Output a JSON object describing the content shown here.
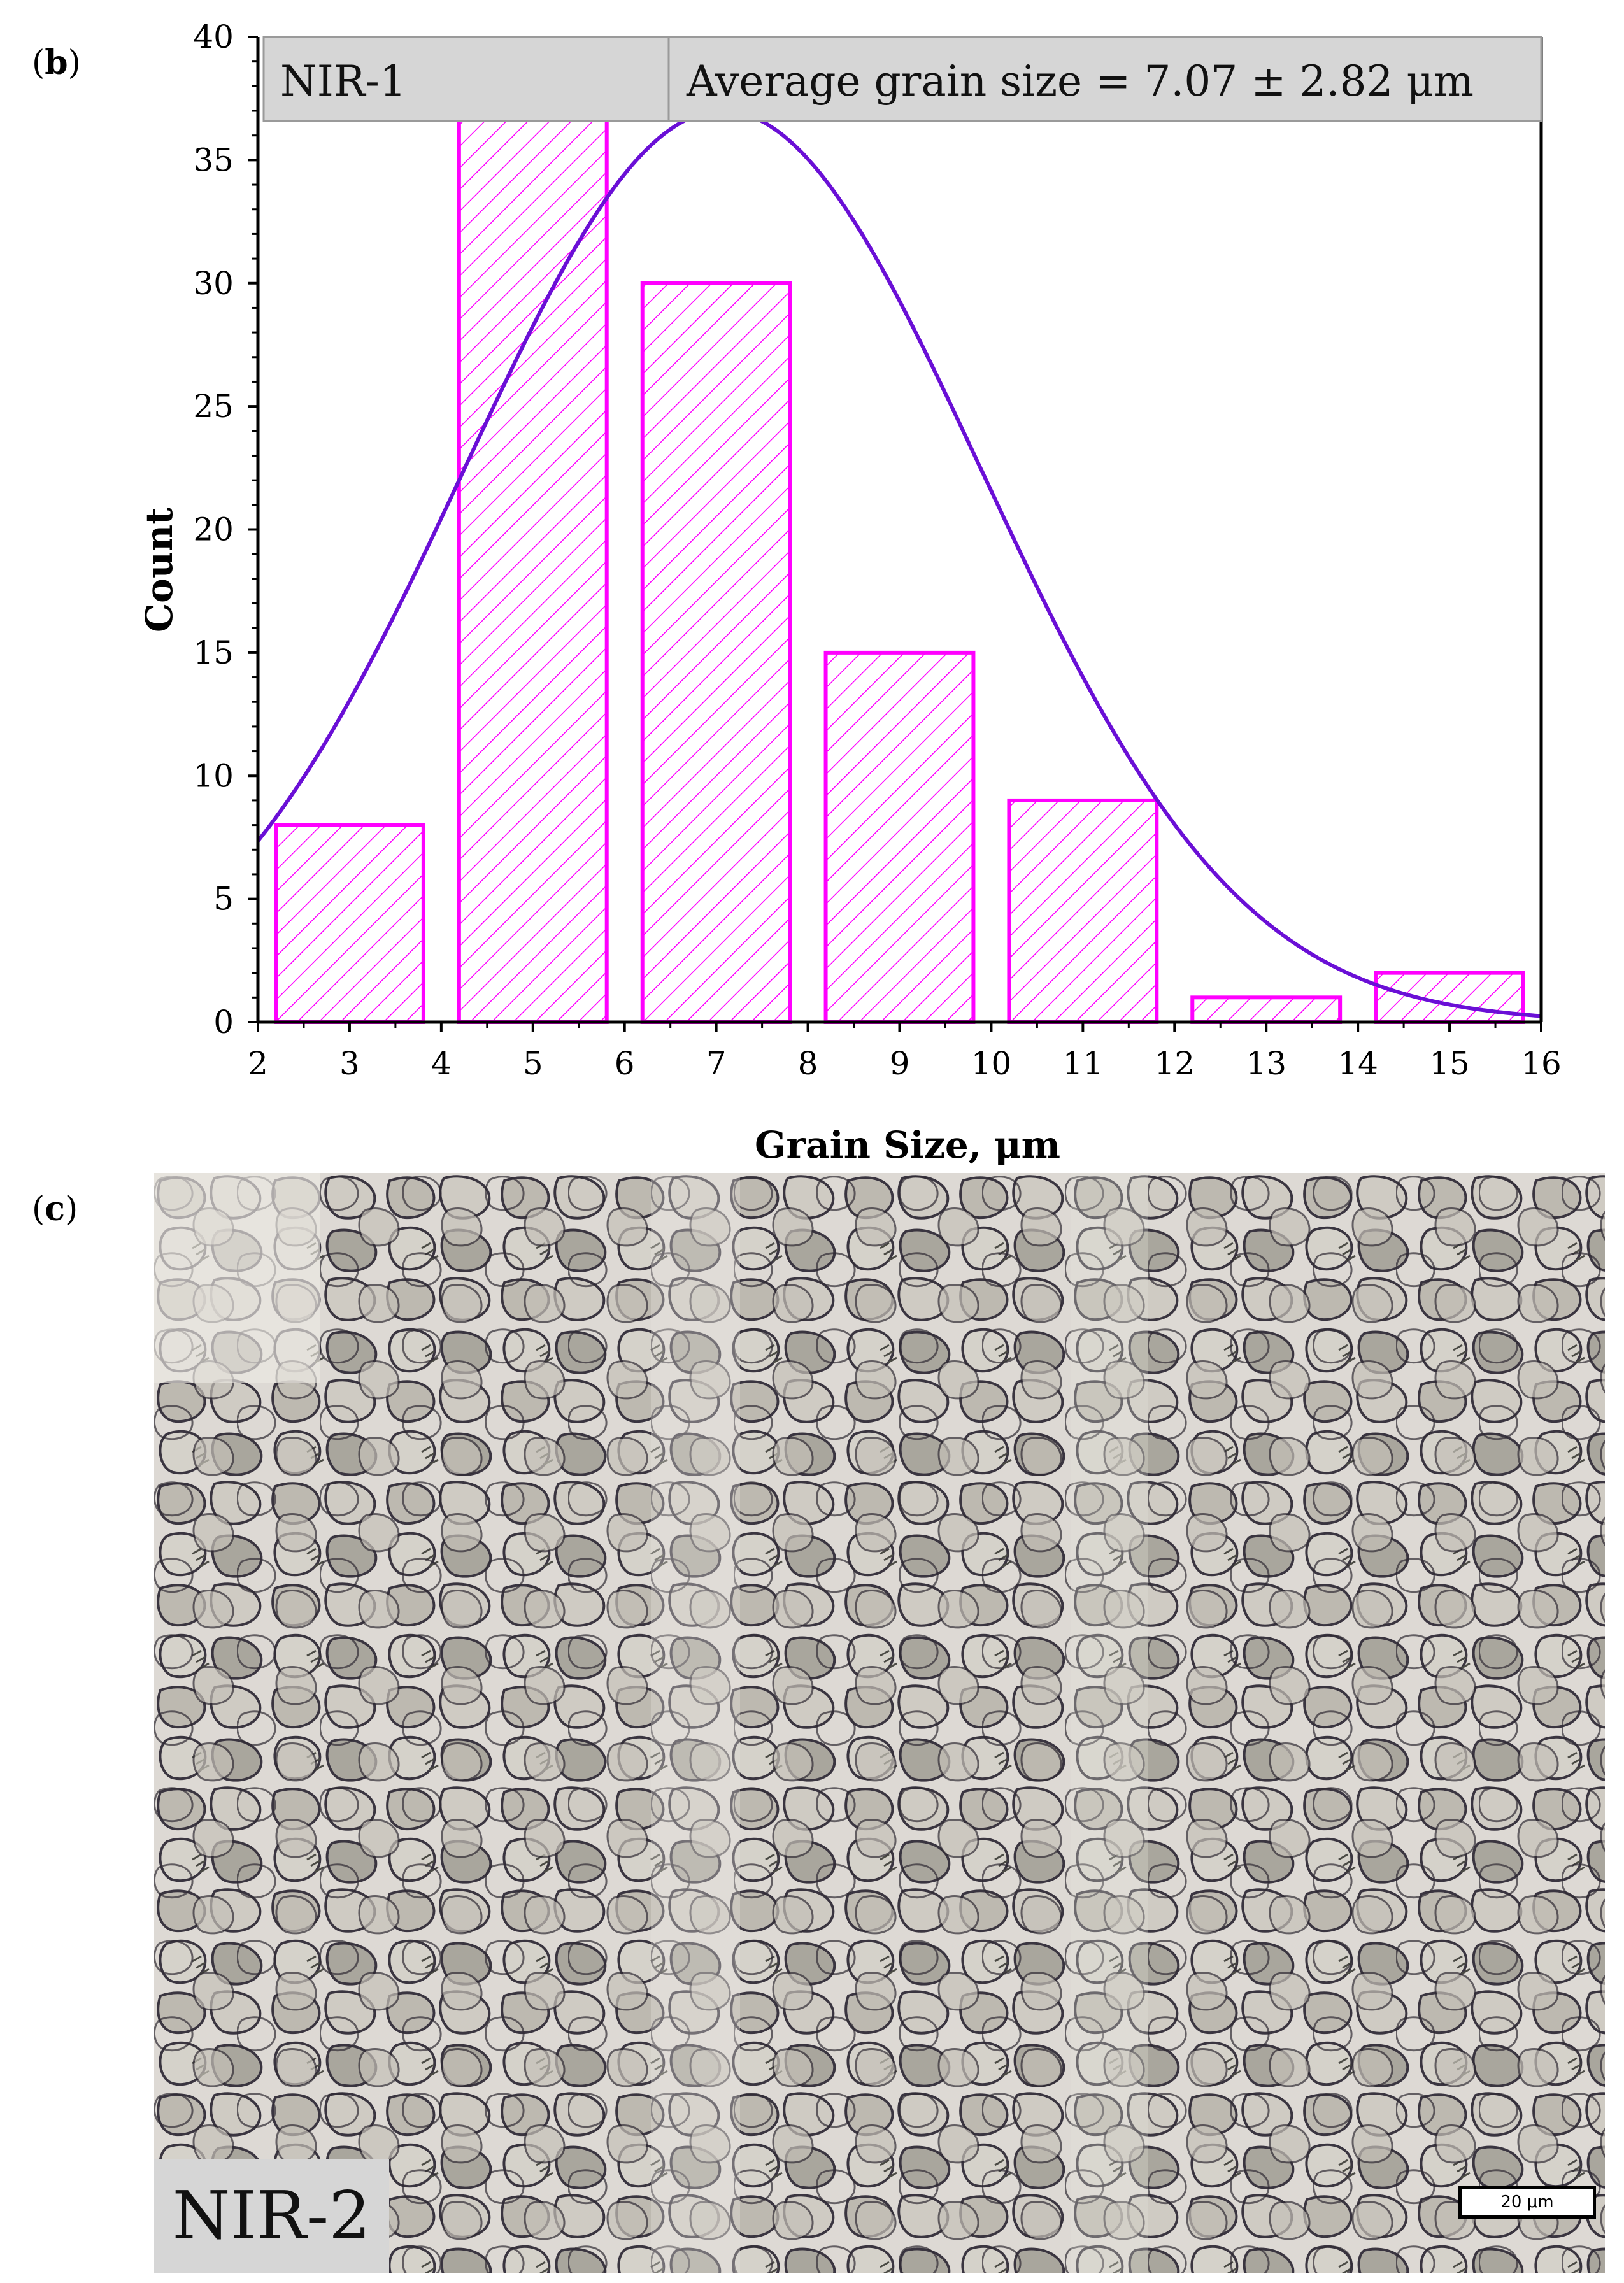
{
  "panels": {
    "b": {
      "label_open": "(",
      "label_letter": "b",
      "label_close": ")"
    },
    "c": {
      "label_open": "(",
      "label_letter": "c",
      "label_close": ")"
    }
  },
  "chart_data": {
    "type": "bar",
    "info_box": {
      "sample": "NIR-1",
      "stat": "Average grain size = 7.07 ± 2.82 μm"
    },
    "xlabel": "Grain Size, μm",
    "ylabel": "Count",
    "xlim": [
      2,
      16
    ],
    "ylim": [
      0,
      40
    ],
    "x_ticks": [
      "2",
      "3",
      "4",
      "5",
      "6",
      "7",
      "8",
      "9",
      "10",
      "11",
      "12",
      "13",
      "14",
      "15",
      "16"
    ],
    "y_ticks": [
      "0",
      "5",
      "10",
      "15",
      "20",
      "25",
      "30",
      "35",
      "40"
    ],
    "bins": [
      {
        "from": 2,
        "to": 4,
        "count": 8
      },
      {
        "from": 4,
        "to": 6,
        "count": 37
      },
      {
        "from": 6,
        "to": 8,
        "count": 30
      },
      {
        "from": 8,
        "to": 10,
        "count": 15
      },
      {
        "from": 10,
        "to": 12,
        "count": 9
      },
      {
        "from": 12,
        "to": 14,
        "count": 1
      },
      {
        "from": 14,
        "to": 16,
        "count": 2
      }
    ],
    "fit": {
      "type": "gaussian",
      "mean": 7.07,
      "peak": 37,
      "sigma": 2.82
    },
    "bar_color": "#ff00ff",
    "fit_color": "#6a0fd6",
    "grid": false,
    "legend": "top"
  },
  "micrograph": {
    "label": "NIR-2",
    "scale_bar": "20 μm"
  }
}
